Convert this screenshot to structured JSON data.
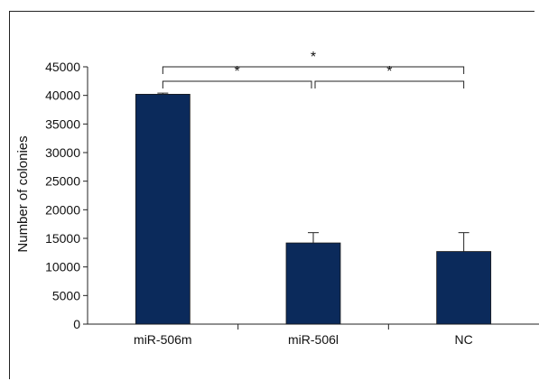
{
  "chart_data": {
    "type": "bar",
    "title": "",
    "xlabel": "",
    "ylabel": "Number of colonies",
    "categories": [
      "miR-506m",
      "miR-506l",
      "NC"
    ],
    "values": [
      40200,
      14200,
      12700
    ],
    "errors": [
      200,
      1800,
      3300
    ],
    "ylim": [
      0,
      45000
    ],
    "yticks": [
      0,
      5000,
      10000,
      15000,
      20000,
      25000,
      30000,
      35000,
      40000,
      45000
    ],
    "ytick_labels": [
      "0",
      "5000",
      "10000",
      "15000",
      "20000",
      "25000",
      "30000",
      "35000",
      "40000",
      "45000"
    ],
    "bar_color": "#0b2a5b",
    "grid": false,
    "legend": "none",
    "significance": [
      {
        "from": "miR-506m",
        "to": "miR-506l",
        "label": "*"
      },
      {
        "from": "miR-506l",
        "to": "NC",
        "label": "*"
      },
      {
        "from": "miR-506m",
        "to": "NC",
        "label": "*"
      }
    ]
  }
}
